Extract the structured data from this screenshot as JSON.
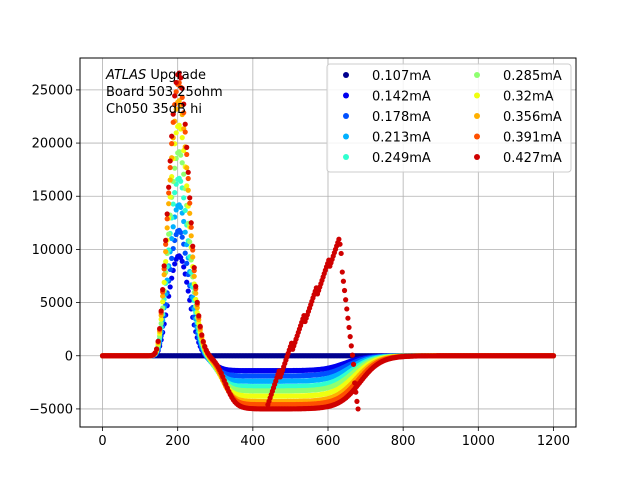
{
  "chart_data": {
    "type": "scatter",
    "title": "",
    "xlabel": "",
    "ylabel": "",
    "xlim": [
      -60,
      1260
    ],
    "ylim": [
      -6700,
      28000
    ],
    "xticks": [
      0,
      200,
      400,
      600,
      800,
      1000,
      1200
    ],
    "yticks": [
      -5000,
      0,
      5000,
      10000,
      15000,
      20000,
      25000
    ],
    "xtick_labels": [
      "0",
      "200",
      "400",
      "600",
      "800",
      "1000",
      "1200"
    ],
    "ytick_labels": [
      "−5000",
      "0",
      "5000",
      "10000",
      "15000",
      "20000",
      "25000"
    ],
    "grid": true,
    "legend_placement": "top-right",
    "annotation": {
      "italic": "ATLAS",
      "rest": " Upgrade",
      "line2": " Board 503 25ohm",
      "line3": " Ch050 35dB hi"
    },
    "series": [
      {
        "name": "0.107mA",
        "color": "#00008f",
        "peak": 0,
        "under": 0,
        "tail": 0
      },
      {
        "name": "0.142mA",
        "color": "#0000ef",
        "peak": 9400,
        "under": 1400,
        "tail": 0
      },
      {
        "name": "0.178mA",
        "color": "#0050ff",
        "peak": 11800,
        "under": 1900,
        "tail": 0
      },
      {
        "name": "0.213mA",
        "color": "#00b0ff",
        "peak": 14200,
        "under": 2400,
        "tail": 0
      },
      {
        "name": "0.249mA",
        "color": "#30ffcf",
        "peak": 16700,
        "under": 2900,
        "tail": 0
      },
      {
        "name": "0.285mA",
        "color": "#8fff70",
        "peak": 19200,
        "under": 3300,
        "tail": 0
      },
      {
        "name": "0.32mA",
        "color": "#efff10",
        "peak": 21700,
        "under": 3800,
        "tail": 0
      },
      {
        "name": "0.356mA",
        "color": "#ffb000",
        "peak": 24000,
        "under": 4300,
        "tail": 0
      },
      {
        "name": "0.391mA",
        "color": "#ff5000",
        "peak": 25700,
        "under": 4600,
        "tail": 0
      },
      {
        "name": "0.427mA",
        "color": "#cf0000",
        "peak": 26600,
        "under": 5000,
        "tail": 10800
      }
    ]
  }
}
